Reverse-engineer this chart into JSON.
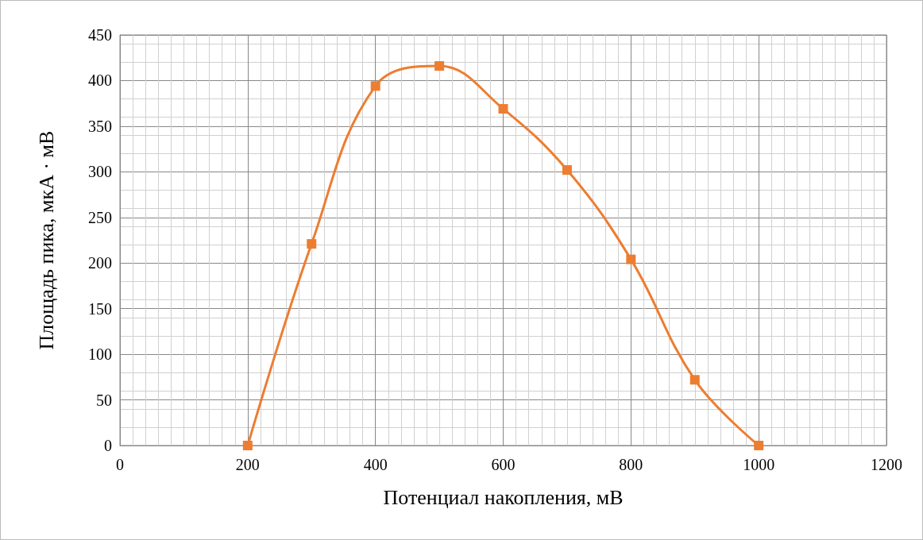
{
  "chart_data": {
    "type": "line",
    "xlabel": "Потенциал накопления, мВ",
    "ylabel": "Площадь пика, мкА · мВ",
    "x": [
      200,
      300,
      400,
      500,
      600,
      700,
      800,
      900,
      1000
    ],
    "series": [
      {
        "color": "#ed7d31",
        "values": [
          0,
          221,
          394,
          416,
          369,
          302,
          204,
          72,
          0
        ]
      }
    ],
    "xlim": [
      0,
      1200
    ],
    "xticks": [
      0,
      200,
      400,
      600,
      800,
      1000,
      1200
    ],
    "ylim": [
      0,
      450
    ],
    "yticks": [
      0,
      50,
      100,
      150,
      200,
      250,
      300,
      350,
      400,
      450
    ],
    "grid": true,
    "marker": "square",
    "line_style": "solid"
  }
}
